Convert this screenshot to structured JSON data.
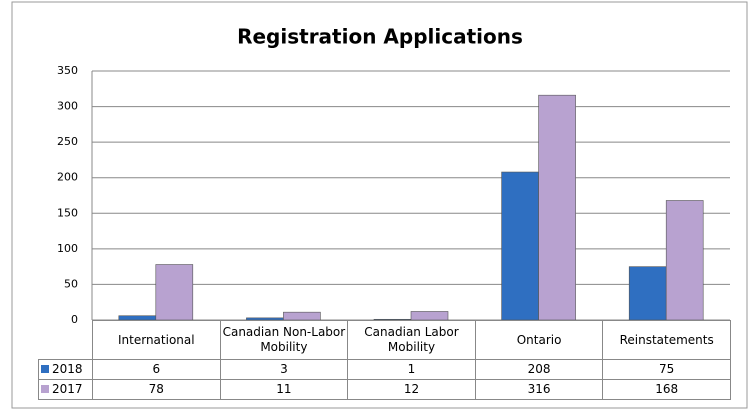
{
  "chart_data": {
    "type": "bar",
    "title": "Registration Applications",
    "categories": [
      "International",
      "Canadian Non-Labor Mobility",
      "Canadian Labor Mobility",
      "Ontario",
      "Reinstatements"
    ],
    "series": [
      {
        "name": "2018",
        "color": "#2f6fc1",
        "values": [
          6,
          3,
          1,
          208,
          75
        ]
      },
      {
        "name": "2017",
        "color": "#b8a2d0",
        "values": [
          78,
          11,
          12,
          316,
          168
        ]
      }
    ],
    "ylim": [
      0,
      350
    ],
    "yticks": [
      0,
      50,
      100,
      150,
      200,
      250,
      300,
      350
    ],
    "grid": true
  }
}
